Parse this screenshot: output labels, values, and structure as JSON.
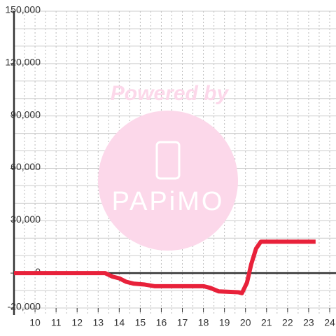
{
  "chart_data": {
    "type": "line",
    "watermark": {
      "top": "Powered by",
      "brand": "PAPiMO"
    },
    "x": [
      9,
      13.33,
      13.67,
      14.0,
      14.33,
      14.67,
      15.17,
      15.67,
      18.0,
      18.33,
      18.73,
      19.67,
      19.83,
      20.07,
      20.27,
      20.5,
      20.73,
      23.33
    ],
    "series": [
      {
        "color": "#e8213a",
        "values": [
          0,
          0,
          -2000,
          -3000,
          -5000,
          -6000,
          -6500,
          -7500,
          -7500,
          -8500,
          -10500,
          -11000,
          -11500,
          -5500,
          5000,
          14000,
          18000,
          18000
        ]
      }
    ],
    "xlim": [
      9,
      24.3
    ],
    "xticks": [
      10,
      11,
      12,
      13,
      14,
      15,
      16,
      17,
      18,
      19,
      20,
      21,
      22,
      23,
      24
    ],
    "ylim": [
      -20000,
      150000
    ],
    "yticks": [
      {
        "value": -20000,
        "label": "-20,000"
      },
      0,
      {
        "value": 30000,
        "label": "30,000"
      },
      {
        "value": 60000,
        "label": "60,000"
      },
      {
        "value": 90000,
        "label": "90,000"
      },
      {
        "value": 120000,
        "label": "120,000"
      },
      {
        "value": 150000,
        "label": "150,000"
      }
    ],
    "ygrid": [
      -20000,
      -10000,
      0,
      10000,
      20000,
      30000,
      40000,
      50000,
      60000,
      70000,
      80000,
      90000,
      100000,
      110000,
      120000,
      130000,
      140000,
      150000
    ],
    "xgrid": [
      9.5,
      10,
      10.5,
      11,
      11.5,
      12,
      12.5,
      13,
      13.5,
      14,
      14.5,
      15,
      15.5,
      16,
      16.5,
      17,
      17.5,
      18,
      18.5,
      19,
      19.5,
      20,
      20.5,
      21,
      21.5,
      22,
      22.5,
      23,
      23.5,
      24
    ],
    "grid": true
  }
}
